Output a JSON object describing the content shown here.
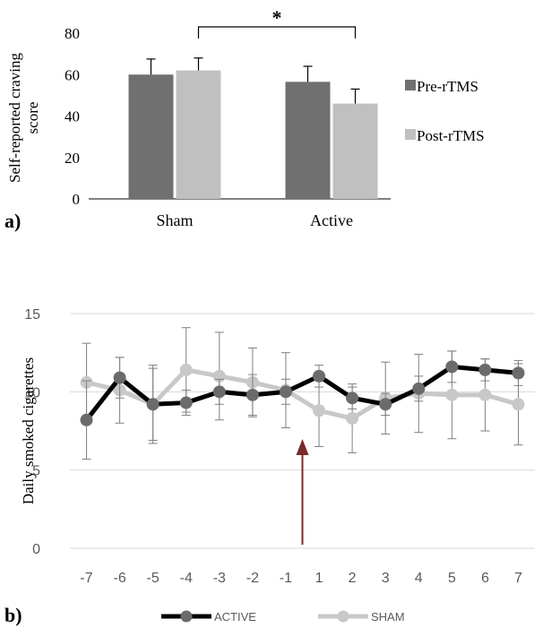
{
  "chart_data": [
    {
      "type": "bar",
      "panel_label": "a)",
      "categories": [
        "Sham",
        "Active"
      ],
      "series": [
        {
          "name": "Pre-rTMS",
          "values": [
            60,
            56.5
          ],
          "errors": [
            7.5,
            7.5
          ],
          "color": "#707070"
        },
        {
          "name": "Post-rTMS",
          "values": [
            62,
            46
          ],
          "errors": [
            6,
            7
          ],
          "color": "#c0c0c0"
        }
      ],
      "ylabel": "Self-reported craving score",
      "ylabel_lines": [
        "Self-reported craving",
        "score"
      ],
      "ylim": [
        0,
        80
      ],
      "yticks": [
        0,
        20,
        40,
        60,
        80
      ],
      "grid": false,
      "legend_position": "right",
      "significance": {
        "between": [
          "Sham",
          "Active"
        ],
        "label": "*"
      }
    },
    {
      "type": "line",
      "panel_label": "b)",
      "categories": [
        "-7",
        "-6",
        "-5",
        "-4",
        "-3",
        "-2",
        "-1",
        "1",
        "2",
        "3",
        "4",
        "5",
        "6",
        "7"
      ],
      "series": [
        {
          "name": "ACTIVE",
          "color": "#000000",
          "marker_color": "#6b6b6b",
          "values": [
            8.2,
            10.9,
            9.2,
            9.3,
            10.0,
            9.8,
            10.0,
            11.0,
            9.6,
            9.2,
            10.2,
            11.6,
            11.4,
            11.2
          ],
          "errors": [
            2.5,
            1.3,
            2.3,
            0.8,
            0.8,
            1.3,
            0.8,
            0.7,
            0.7,
            0.7,
            0.8,
            1.0,
            0.7,
            0.8
          ]
        },
        {
          "name": "SHAM",
          "color": "#c8c8c8",
          "marker_color": "#c8c8c8",
          "values": [
            10.6,
            10.1,
            9.2,
            11.4,
            11.0,
            10.6,
            10.1,
            8.8,
            8.3,
            9.6,
            9.9,
            9.8,
            9.8,
            9.2
          ],
          "errors": [
            2.5,
            2.1,
            2.5,
            2.7,
            2.8,
            2.2,
            2.4,
            2.3,
            2.2,
            2.3,
            2.5,
            2.8,
            2.3,
            2.6
          ]
        }
      ],
      "ylabel": "Daily smoked  cigarettes",
      "ylim": [
        0,
        15
      ],
      "yticks": [
        0,
        5,
        10,
        15
      ],
      "grid": true,
      "legend_position": "bottom",
      "annotation": {
        "type": "arrow",
        "between": [
          "-1",
          "1"
        ],
        "color": "#7a2a2a"
      }
    }
  ]
}
